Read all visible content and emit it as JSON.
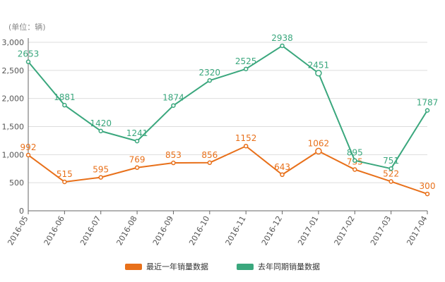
{
  "unit_label": "(单位：辆)",
  "colors": {
    "recent": "#e8701a",
    "last_year": "#3aa77d",
    "grid": "#dddddd",
    "axis": "#666666",
    "tick_text": "#555555"
  },
  "chart_data": {
    "type": "line",
    "categories": [
      "2016-05",
      "2016-06",
      "2016-07",
      "2016-08",
      "2016-09",
      "2016-10",
      "2016-11",
      "2016-12",
      "2017-01",
      "2017-02",
      "2017-03",
      "2017-04"
    ],
    "ylim": [
      0,
      3000
    ],
    "yticks": [
      "0",
      "500",
      "1,000",
      "1,500",
      "2,000",
      "2,500",
      "3,000"
    ],
    "ytick_values": [
      0,
      500,
      1000,
      1500,
      2000,
      2500,
      3000
    ],
    "grid": true,
    "legend_position": "bottom",
    "series": [
      {
        "name": "最近一年销量数据",
        "color_key": "recent",
        "values": [
          992,
          515,
          595,
          769,
          853,
          856,
          1152,
          643,
          1062,
          735,
          522,
          300
        ],
        "labels": [
          "992",
          "515",
          "595",
          "769",
          "853",
          "856",
          "1152",
          "643",
          "1062",
          "735",
          "522",
          "300"
        ]
      },
      {
        "name": "去年同期销量数据",
        "color_key": "last_year",
        "values": [
          2653,
          1881,
          1420,
          1241,
          1874,
          2320,
          2525,
          2938,
          2451,
          895,
          751,
          1787
        ],
        "labels": [
          "2653",
          "1881",
          "1420",
          "1241",
          "1874",
          "2320",
          "2525",
          "2938",
          "2451",
          "895",
          "751",
          "1787"
        ]
      }
    ]
  }
}
